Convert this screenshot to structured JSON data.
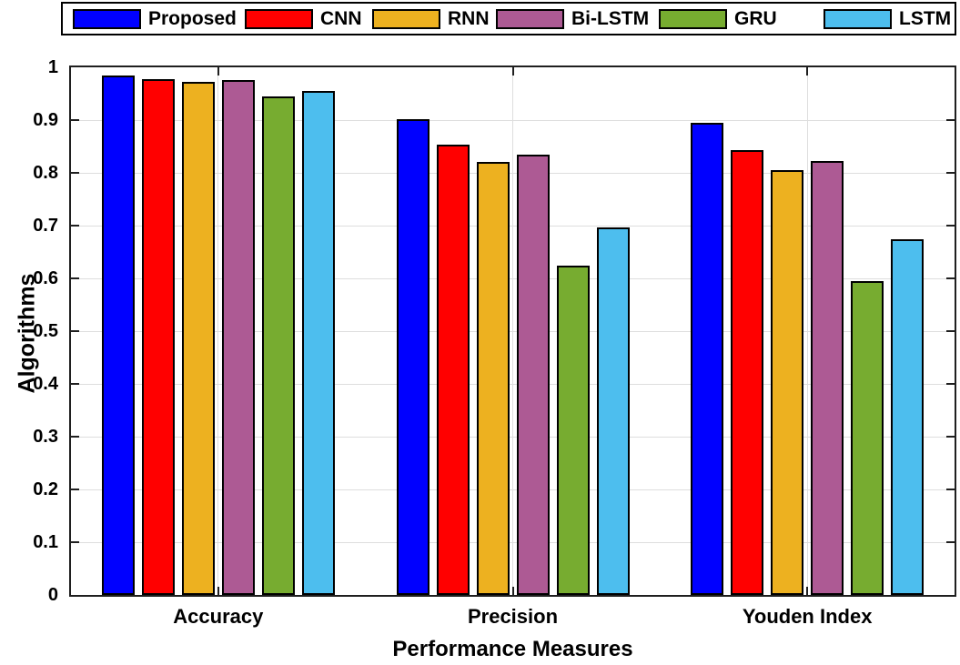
{
  "chart_data": {
    "type": "bar",
    "title": "",
    "xlabel": "Performance Measures",
    "ylabel": "Algorithms",
    "categories": [
      "Accuracy",
      "Precision",
      "Youden Index"
    ],
    "series": [
      {
        "name": "Proposed",
        "color": "#0000ff",
        "values": [
          0.985,
          0.901,
          0.895
        ]
      },
      {
        "name": "CNN",
        "color": "#ff0000",
        "values": [
          0.978,
          0.854,
          0.843
        ]
      },
      {
        "name": "RNN",
        "color": "#edb120",
        "values": [
          0.972,
          0.82,
          0.806
        ]
      },
      {
        "name": "Bi-LSTM",
        "color": "#ad5a94",
        "values": [
          0.975,
          0.835,
          0.822
        ]
      },
      {
        "name": "GRU",
        "color": "#77ac30",
        "values": [
          0.945,
          0.624,
          0.595
        ]
      },
      {
        "name": "LSTM",
        "color": "#4dbeee",
        "values": [
          0.956,
          0.697,
          0.674
        ]
      }
    ],
    "ylim": [
      0,
      1
    ],
    "ytick_labels": [
      "0",
      "0.1",
      "0.2",
      "0.3",
      "0.4",
      "0.5",
      "0.6",
      "0.7",
      "0.8",
      "0.9",
      "1"
    ],
    "grid": "on",
    "legend_position": "top",
    "axis_color": "#1f1f1f",
    "grid_color": "#dedede",
    "bar_edge_color": "#000000"
  }
}
